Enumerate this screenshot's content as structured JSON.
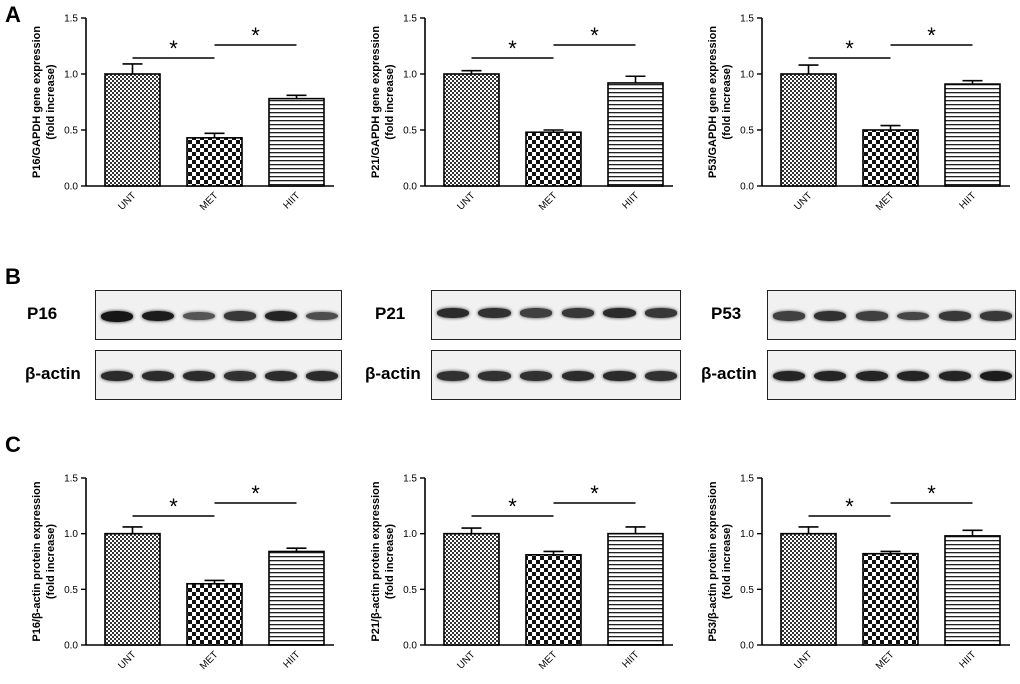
{
  "panels": {
    "a": "A",
    "b": "B",
    "c": "C"
  },
  "colors": {
    "bar": "#000000",
    "band": "#1a1a1a"
  },
  "western_blot": {
    "blots": [
      {
        "label": "P16",
        "control_label": "β-actin"
      },
      {
        "label": "P21",
        "control_label": "β-actin"
      },
      {
        "label": "P53",
        "control_label": "β-actin"
      }
    ],
    "band_intensity": [
      [
        1.0,
        0.95,
        0.55,
        0.75,
        0.9,
        0.6
      ],
      [
        0.85,
        0.8,
        0.7,
        0.75,
        0.85,
        0.75
      ],
      [
        0.7,
        0.8,
        0.7,
        0.65,
        0.75,
        0.75
      ]
    ],
    "control_intensity": [
      [
        0.85,
        0.85,
        0.85,
        0.8,
        0.85,
        0.85
      ],
      [
        0.8,
        0.8,
        0.8,
        0.85,
        0.85,
        0.8
      ],
      [
        0.9,
        0.9,
        0.9,
        0.9,
        0.9,
        0.95
      ]
    ]
  },
  "chart_data": [
    {
      "type": "bar",
      "categories": [
        "UNT",
        "MET",
        "HIIT"
      ],
      "values": [
        1.0,
        0.43,
        0.78
      ],
      "errors": [
        0.09,
        0.04,
        0.03
      ],
      "ylabel": [
        "P16/GAPDH gene expression",
        "(fold increase)"
      ],
      "ylim": [
        0,
        1.5
      ],
      "yticks": [
        "0.0",
        "0.5",
        "1.0",
        "1.5"
      ],
      "significance": "*"
    },
    {
      "type": "bar",
      "categories": [
        "UNT",
        "MET",
        "HIIT"
      ],
      "values": [
        1.0,
        0.48,
        0.92
      ],
      "errors": [
        0.03,
        0.02,
        0.06
      ],
      "ylabel": [
        "P21/GAPDH gene expression",
        "(fold increase)"
      ],
      "ylim": [
        0,
        1.5
      ],
      "yticks": [
        "0.0",
        "0.5",
        "1.0",
        "1.5"
      ],
      "significance": "*"
    },
    {
      "type": "bar",
      "categories": [
        "UNT",
        "MET",
        "HIIT"
      ],
      "values": [
        1.0,
        0.5,
        0.91
      ],
      "errors": [
        0.08,
        0.04,
        0.03
      ],
      "ylabel": [
        "P53/GAPDH gene expression",
        "(fold increase)"
      ],
      "ylim": [
        0,
        1.5
      ],
      "yticks": [
        "0.0",
        "0.5",
        "1.0",
        "1.5"
      ],
      "significance": "*"
    },
    {
      "type": "bar",
      "categories": [
        "UNT",
        "MET",
        "HIIT"
      ],
      "values": [
        1.0,
        0.55,
        0.84
      ],
      "errors": [
        0.06,
        0.03,
        0.03
      ],
      "ylabel": [
        "P16/β-actin protein expression",
        "(fold increase)"
      ],
      "ylim": [
        0,
        1.5
      ],
      "yticks": [
        "0.0",
        "0.5",
        "1.0",
        "1.5"
      ],
      "significance": "*"
    },
    {
      "type": "bar",
      "categories": [
        "UNT",
        "MET",
        "HIIT"
      ],
      "values": [
        1.0,
        0.81,
        1.0
      ],
      "errors": [
        0.05,
        0.03,
        0.06
      ],
      "ylabel": [
        "P21/β-actin protein expression",
        "(fold increase)"
      ],
      "ylim": [
        0,
        1.5
      ],
      "yticks": [
        "0.0",
        "0.5",
        "1.0",
        "1.5"
      ],
      "significance": "*"
    },
    {
      "type": "bar",
      "categories": [
        "UNT",
        "MET",
        "HIIT"
      ],
      "values": [
        1.0,
        0.82,
        0.98
      ],
      "errors": [
        0.06,
        0.02,
        0.05
      ],
      "ylabel": [
        "P53/β-actin protein expression",
        "(fold increase)"
      ],
      "ylim": [
        0,
        1.5
      ],
      "yticks": [
        "0.0",
        "0.5",
        "1.0",
        "1.5"
      ],
      "significance": "*"
    }
  ]
}
